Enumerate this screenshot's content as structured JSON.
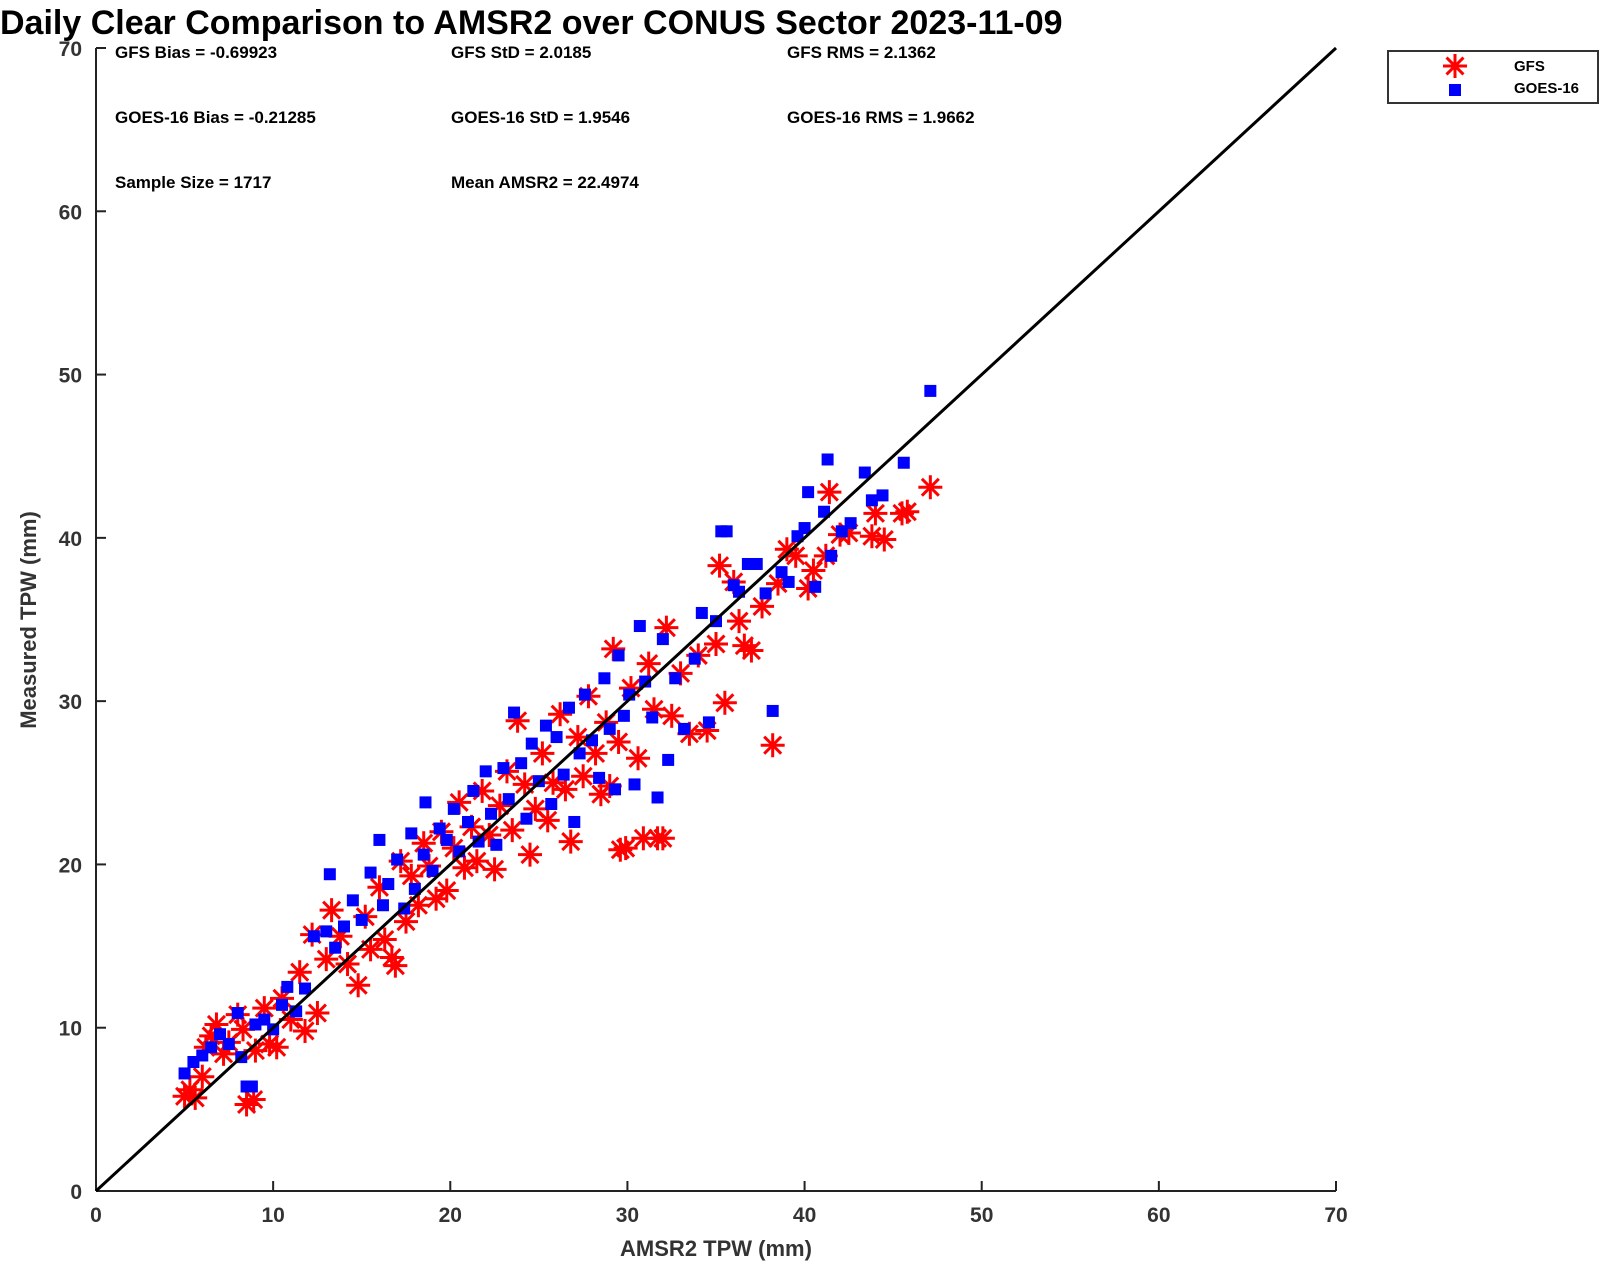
{
  "chart_data": {
    "type": "scatter",
    "title": "Daily Clear Comparison to AMSR2 over CONUS Sector 2023-11-09",
    "xlabel": "AMSR2 TPW (mm)",
    "ylabel": "Measured TPW (mm)",
    "xlim": [
      0,
      70
    ],
    "ylim": [
      0,
      70
    ],
    "xticks": [
      0,
      10,
      20,
      30,
      40,
      50,
      60,
      70
    ],
    "yticks": [
      0,
      10,
      20,
      30,
      40,
      50,
      60,
      70
    ],
    "xtick_labels": [
      "0",
      "10",
      "20",
      "30",
      "40",
      "50",
      "60",
      "70"
    ],
    "ytick_labels": [
      "0",
      "10",
      "20",
      "30",
      "40",
      "50",
      "60",
      "70"
    ],
    "grid": false,
    "legend_position": "top-right outside",
    "reference_line": {
      "name": "1:1 line",
      "x": [
        0,
        70
      ],
      "y": [
        0,
        70
      ],
      "color": "#000000"
    },
    "stats": {
      "gfs_bias": "GFS Bias = -0.69923",
      "gfs_std": "GFS StD = 2.0185",
      "gfs_rms": "GFS RMS = 2.1362",
      "goes_bias": "GOES-16 Bias = -0.21285",
      "goes_std": "GOES-16 StD = 1.9546",
      "goes_rms": "GOES-16 RMS = 1.9662",
      "sample_size": "Sample Size = 1717",
      "mean_amsr2": "Mean AMSR2 = 22.4974"
    },
    "series": [
      {
        "name": "GFS",
        "marker": "asterisk",
        "color": "#ff0000",
        "points": [
          [
            5.0,
            5.8
          ],
          [
            5.3,
            6.2
          ],
          [
            5.6,
            5.7
          ],
          [
            6.0,
            7.0
          ],
          [
            6.2,
            8.8
          ],
          [
            6.5,
            9.5
          ],
          [
            6.8,
            10.2
          ],
          [
            7.2,
            8.4
          ],
          [
            7.5,
            9.1
          ],
          [
            8.0,
            10.8
          ],
          [
            8.3,
            9.9
          ],
          [
            8.5,
            5.3
          ],
          [
            8.9,
            5.6
          ],
          [
            9.0,
            8.6
          ],
          [
            9.5,
            11.2
          ],
          [
            9.8,
            9.0
          ],
          [
            10.2,
            8.8
          ],
          [
            10.5,
            11.8
          ],
          [
            11.0,
            10.5
          ],
          [
            11.5,
            13.4
          ],
          [
            11.8,
            9.8
          ],
          [
            12.2,
            15.7
          ],
          [
            12.5,
            10.9
          ],
          [
            13.0,
            14.2
          ],
          [
            13.3,
            17.2
          ],
          [
            13.8,
            15.6
          ],
          [
            14.2,
            13.9
          ],
          [
            14.8,
            12.6
          ],
          [
            15.2,
            16.8
          ],
          [
            15.5,
            14.8
          ],
          [
            16.0,
            18.6
          ],
          [
            16.3,
            15.4
          ],
          [
            16.7,
            14.3
          ],
          [
            16.9,
            13.8
          ],
          [
            17.2,
            20.2
          ],
          [
            17.5,
            16.5
          ],
          [
            17.8,
            19.3
          ],
          [
            18.2,
            17.5
          ],
          [
            18.5,
            21.3
          ],
          [
            18.8,
            19.9
          ],
          [
            19.2,
            17.9
          ],
          [
            19.5,
            22.0
          ],
          [
            19.8,
            18.4
          ],
          [
            20.2,
            21.0
          ],
          [
            20.5,
            23.8
          ],
          [
            20.8,
            19.8
          ],
          [
            21.2,
            22.3
          ],
          [
            21.5,
            20.2
          ],
          [
            21.8,
            24.5
          ],
          [
            22.2,
            21.8
          ],
          [
            22.5,
            19.7
          ],
          [
            22.8,
            23.6
          ],
          [
            23.2,
            25.7
          ],
          [
            23.5,
            22.1
          ],
          [
            23.8,
            28.8
          ],
          [
            24.2,
            24.9
          ],
          [
            24.5,
            20.6
          ],
          [
            24.8,
            23.4
          ],
          [
            25.2,
            26.8
          ],
          [
            25.5,
            22.7
          ],
          [
            25.8,
            25.0
          ],
          [
            26.2,
            29.2
          ],
          [
            26.5,
            24.6
          ],
          [
            26.8,
            21.4
          ],
          [
            27.2,
            27.8
          ],
          [
            27.5,
            25.4
          ],
          [
            27.8,
            30.3
          ],
          [
            28.2,
            26.8
          ],
          [
            28.5,
            24.3
          ],
          [
            28.8,
            28.7
          ],
          [
            29.0,
            24.8
          ],
          [
            29.2,
            33.2
          ],
          [
            29.5,
            27.5
          ],
          [
            29.6,
            20.9
          ],
          [
            29.9,
            21.0
          ],
          [
            30.2,
            30.8
          ],
          [
            30.6,
            26.5
          ],
          [
            30.9,
            21.6
          ],
          [
            31.2,
            32.3
          ],
          [
            31.5,
            29.5
          ],
          [
            31.7,
            21.6
          ],
          [
            32.0,
            21.6
          ],
          [
            32.2,
            34.5
          ],
          [
            32.5,
            29.1
          ],
          [
            33.0,
            31.7
          ],
          [
            33.5,
            28.0
          ],
          [
            34.0,
            32.8
          ],
          [
            34.5,
            28.2
          ],
          [
            35.0,
            33.5
          ],
          [
            35.2,
            38.3
          ],
          [
            35.5,
            29.9
          ],
          [
            36.0,
            37.3
          ],
          [
            36.3,
            34.9
          ],
          [
            36.6,
            33.4
          ],
          [
            37.0,
            33.1
          ],
          [
            37.6,
            35.8
          ],
          [
            38.2,
            27.3
          ],
          [
            38.5,
            37.2
          ],
          [
            39.0,
            39.3
          ],
          [
            39.5,
            38.9
          ],
          [
            40.2,
            36.9
          ],
          [
            40.5,
            38.0
          ],
          [
            41.2,
            38.9
          ],
          [
            41.4,
            42.8
          ],
          [
            42.0,
            40.2
          ],
          [
            42.5,
            40.3
          ],
          [
            43.8,
            40.1
          ],
          [
            44.0,
            41.5
          ],
          [
            44.5,
            39.9
          ],
          [
            45.5,
            41.5
          ],
          [
            45.8,
            41.6
          ],
          [
            47.1,
            43.1
          ]
        ]
      },
      {
        "name": "GOES-16",
        "marker": "square",
        "color": "#0000ff",
        "points": [
          [
            5.0,
            7.2
          ],
          [
            5.5,
            7.9
          ],
          [
            6.0,
            8.3
          ],
          [
            6.5,
            8.8
          ],
          [
            7.0,
            9.6
          ],
          [
            7.5,
            9.0
          ],
          [
            8.0,
            10.9
          ],
          [
            8.2,
            8.2
          ],
          [
            8.5,
            6.4
          ],
          [
            8.8,
            6.4
          ],
          [
            9.0,
            10.2
          ],
          [
            9.5,
            10.5
          ],
          [
            10.0,
            9.9
          ],
          [
            10.5,
            11.4
          ],
          [
            10.8,
            12.5
          ],
          [
            11.3,
            11.0
          ],
          [
            11.8,
            12.4
          ],
          [
            12.3,
            15.6
          ],
          [
            13.0,
            15.9
          ],
          [
            13.2,
            19.4
          ],
          [
            13.5,
            14.9
          ],
          [
            14.0,
            16.2
          ],
          [
            14.5,
            17.8
          ],
          [
            15.0,
            16.6
          ],
          [
            15.5,
            19.5
          ],
          [
            16.0,
            21.5
          ],
          [
            16.2,
            17.5
          ],
          [
            16.5,
            18.8
          ],
          [
            17.0,
            20.3
          ],
          [
            17.4,
            17.3
          ],
          [
            17.8,
            21.9
          ],
          [
            18.0,
            18.5
          ],
          [
            18.5,
            20.6
          ],
          [
            18.6,
            23.8
          ],
          [
            19.0,
            19.6
          ],
          [
            19.4,
            22.2
          ],
          [
            19.8,
            21.5
          ],
          [
            20.2,
            23.4
          ],
          [
            20.5,
            20.8
          ],
          [
            21.0,
            22.6
          ],
          [
            21.3,
            24.5
          ],
          [
            21.6,
            21.4
          ],
          [
            22.0,
            25.7
          ],
          [
            22.3,
            23.1
          ],
          [
            22.6,
            21.2
          ],
          [
            23.0,
            25.9
          ],
          [
            23.3,
            24.0
          ],
          [
            23.6,
            29.3
          ],
          [
            24.0,
            26.2
          ],
          [
            24.3,
            22.8
          ],
          [
            24.6,
            27.4
          ],
          [
            25.0,
            25.1
          ],
          [
            25.4,
            28.5
          ],
          [
            25.7,
            23.7
          ],
          [
            26.0,
            27.8
          ],
          [
            26.4,
            25.5
          ],
          [
            26.7,
            29.6
          ],
          [
            27.0,
            22.6
          ],
          [
            27.3,
            26.8
          ],
          [
            27.6,
            30.4
          ],
          [
            28.0,
            27.6
          ],
          [
            28.4,
            25.3
          ],
          [
            28.7,
            31.4
          ],
          [
            29.0,
            28.3
          ],
          [
            29.3,
            24.6
          ],
          [
            29.5,
            32.8
          ],
          [
            29.8,
            29.1
          ],
          [
            30.1,
            30.4
          ],
          [
            30.4,
            24.9
          ],
          [
            30.7,
            34.6
          ],
          [
            31.0,
            31.2
          ],
          [
            31.4,
            29.0
          ],
          [
            31.7,
            24.1
          ],
          [
            32.0,
            33.8
          ],
          [
            32.3,
            26.4
          ],
          [
            32.7,
            31.4
          ],
          [
            33.2,
            28.3
          ],
          [
            33.8,
            32.6
          ],
          [
            34.2,
            35.4
          ],
          [
            34.6,
            28.7
          ],
          [
            35.0,
            34.9
          ],
          [
            35.3,
            40.4
          ],
          [
            35.6,
            40.4
          ],
          [
            36.0,
            37.1
          ],
          [
            36.3,
            36.7
          ],
          [
            36.8,
            38.4
          ],
          [
            37.3,
            38.4
          ],
          [
            37.8,
            36.6
          ],
          [
            38.2,
            29.4
          ],
          [
            38.7,
            37.9
          ],
          [
            39.1,
            37.3
          ],
          [
            39.6,
            40.1
          ],
          [
            40.0,
            40.6
          ],
          [
            40.2,
            42.8
          ],
          [
            40.6,
            37.0
          ],
          [
            41.1,
            41.6
          ],
          [
            41.3,
            44.8
          ],
          [
            41.5,
            38.9
          ],
          [
            42.1,
            40.4
          ],
          [
            42.6,
            40.9
          ],
          [
            43.4,
            44.0
          ],
          [
            43.8,
            42.3
          ],
          [
            44.4,
            42.6
          ],
          [
            45.6,
            44.6
          ],
          [
            47.1,
            49.0
          ]
        ]
      }
    ],
    "legend": [
      {
        "label": "GFS",
        "color": "#ff0000",
        "marker": "asterisk"
      },
      {
        "label": "GOES-16",
        "color": "#0000ff",
        "marker": "square"
      }
    ]
  }
}
